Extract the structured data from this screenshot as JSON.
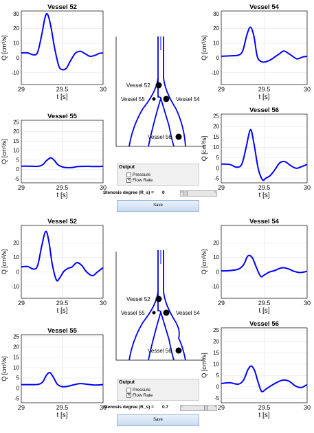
{
  "colors": {
    "curve": "#0000ff",
    "grid": "#e3e3e3",
    "axis": "#000000"
  },
  "sets": [
    {
      "stenosis_label": "Stenosis degree (R_s) =",
      "stenosis_value": "0",
      "output": {
        "title": "Output",
        "options": [
          {
            "label": "Pressure",
            "checked": false
          },
          {
            "label": "Flow Rate",
            "checked": true
          }
        ]
      },
      "save_label": "Save",
      "diagram_labels": [
        "Vessel 52",
        "Vessel 55",
        "Vessel 54",
        "Vessel 56"
      ]
    },
    {
      "stenosis_label": "Stenosis degree (R_s) =",
      "stenosis_value": "0.7",
      "output": {
        "title": "Output",
        "options": [
          {
            "label": "Pressure",
            "checked": false
          },
          {
            "label": "Flow Rate",
            "checked": true
          }
        ]
      },
      "save_label": "Save",
      "diagram_labels": [
        "Vessel 52",
        "Vessel 55",
        "Vessel 54",
        "Vessel 56"
      ]
    }
  ],
  "chart_data": [
    {
      "type": "line",
      "title": "Vessel 52",
      "ylabel": "Q [cm³/s]",
      "xlabel": "t [s]",
      "xlim": [
        29,
        30
      ],
      "ylim": [
        -18,
        32
      ],
      "x_ticks": [
        "29",
        "29.5",
        "30"
      ],
      "y_ticks": [
        "30",
        "20",
        "10",
        "0",
        "-10"
      ],
      "x": [
        29.0,
        29.08,
        29.15,
        29.2,
        29.25,
        29.29,
        29.32,
        29.36,
        29.41,
        29.46,
        29.5,
        29.55,
        29.6,
        29.66,
        29.72,
        29.78,
        29.84,
        29.9,
        29.95,
        30.0
      ],
      "y": [
        3.5,
        3.5,
        2.2,
        4.0,
        16.0,
        27.5,
        29.8,
        22.0,
        6.0,
        -5.5,
        -7.8,
        -7.0,
        -2.0,
        3.2,
        4.6,
        3.0,
        1.2,
        1.8,
        3.1,
        3.5
      ]
    },
    {
      "type": "line",
      "title": "Vessel 54",
      "ylabel": "Q [cm³/s]",
      "xlabel": "t [s]",
      "xlim": [
        29,
        30
      ],
      "ylim": [
        -18,
        32
      ],
      "x_ticks": [
        "29",
        "29.5",
        "30"
      ],
      "y_ticks": [
        "30",
        "20",
        "10",
        "0",
        "-10"
      ],
      "x": [
        29.0,
        29.1,
        29.2,
        29.25,
        29.3,
        29.34,
        29.38,
        29.42,
        29.47,
        29.52,
        29.58,
        29.63,
        29.68,
        29.73,
        29.8,
        29.88,
        29.95,
        30.0
      ],
      "y": [
        1.2,
        1.5,
        2.0,
        5.0,
        16.0,
        21.0,
        15.0,
        1.0,
        -2.5,
        -2.5,
        -1.0,
        1.0,
        3.0,
        4.8,
        2.5,
        -0.5,
        0.8,
        1.2
      ]
    },
    {
      "type": "line",
      "title": "Vessel 55",
      "ylabel": "Q [cm³/s]",
      "xlabel": "t [s]",
      "xlim": [
        29,
        30
      ],
      "ylim": [
        -7,
        26
      ],
      "x_ticks": [
        "29",
        "29.5",
        "30"
      ],
      "y_ticks": [
        "25",
        "20",
        "15",
        "10",
        "5",
        "0",
        "-5"
      ],
      "x": [
        29.0,
        29.1,
        29.2,
        29.26,
        29.31,
        29.36,
        29.4,
        29.45,
        29.52,
        29.6,
        29.7,
        29.8,
        29.9,
        30.0
      ],
      "y": [
        1.8,
        1.8,
        1.7,
        2.5,
        4.8,
        6.2,
        5.0,
        2.5,
        1.2,
        1.0,
        1.6,
        1.7,
        1.6,
        1.7
      ]
    },
    {
      "type": "line",
      "title": "Vessel 56",
      "ylabel": "Q [cm³/s]",
      "xlabel": "t [s]",
      "xlim": [
        29,
        30
      ],
      "ylim": [
        -7,
        26
      ],
      "x_ticks": [
        "29",
        "29.5",
        "30"
      ],
      "y_ticks": [
        "25",
        "20",
        "15",
        "10",
        "5",
        "0",
        "-5"
      ],
      "x": [
        29.0,
        29.1,
        29.18,
        29.24,
        29.29,
        29.34,
        29.38,
        29.43,
        29.48,
        29.52,
        29.57,
        29.62,
        29.68,
        29.74,
        29.8,
        29.87,
        29.93,
        30.0
      ],
      "y": [
        2.0,
        1.8,
        0.5,
        2.0,
        10.0,
        18.5,
        12.0,
        0.0,
        -5.5,
        -4.8,
        -3.5,
        -1.0,
        2.5,
        3.2,
        1.5,
        0.0,
        0.7,
        1.8
      ]
    },
    {
      "type": "line",
      "title": "Vessel 52",
      "ylabel": "Q [cm³/s]",
      "xlabel": "t [s]",
      "xlim": [
        29,
        30
      ],
      "ylim": [
        -18,
        32
      ],
      "x_ticks": [
        "29",
        "29.5",
        "30"
      ],
      "y_ticks": [
        "20",
        "10",
        "0",
        "-10"
      ],
      "x": [
        29.0,
        29.08,
        29.15,
        29.2,
        29.25,
        29.3,
        29.34,
        29.38,
        29.43,
        29.47,
        29.52,
        29.57,
        29.62,
        29.68,
        29.74,
        29.8,
        29.87,
        29.93,
        30.0
      ],
      "y": [
        3.5,
        3.8,
        2.0,
        4.5,
        18.0,
        28.0,
        20.0,
        5.0,
        -5.5,
        -4.0,
        0.5,
        2.5,
        3.5,
        6.5,
        4.5,
        0.0,
        -2.5,
        0.0,
        3.0
      ]
    },
    {
      "type": "line",
      "title": "Vessel 54",
      "ylabel": "Q [cm³/s]",
      "xlabel": "t [s]",
      "xlim": [
        29,
        30
      ],
      "ylim": [
        -18,
        32
      ],
      "x_ticks": [
        "29",
        "29.5",
        "30"
      ],
      "y_ticks": [
        "20",
        "10",
        "0",
        "-10"
      ],
      "x": [
        29.0,
        29.1,
        29.2,
        29.26,
        29.31,
        29.36,
        29.41,
        29.46,
        29.5,
        29.56,
        29.62,
        29.68,
        29.73,
        29.79,
        29.85,
        29.92,
        30.0
      ],
      "y": [
        0.8,
        1.0,
        2.0,
        5.0,
        11.0,
        10.0,
        3.0,
        -3.0,
        -2.0,
        0.0,
        1.0,
        2.5,
        3.0,
        2.0,
        0.5,
        -0.3,
        0.5
      ]
    },
    {
      "type": "line",
      "title": "Vessel 55",
      "ylabel": "Q [cm³/s]",
      "xlabel": "t [s]",
      "xlim": [
        29,
        30
      ],
      "ylim": [
        -7,
        26
      ],
      "x_ticks": [
        "29",
        "29.5",
        "30"
      ],
      "y_ticks": [
        "25",
        "20",
        "15",
        "10",
        "5",
        "0",
        "-5"
      ],
      "x": [
        29.0,
        29.1,
        29.2,
        29.26,
        29.31,
        29.35,
        29.39,
        29.44,
        29.5,
        29.57,
        29.65,
        29.72,
        29.8,
        29.9,
        30.0
      ],
      "y": [
        1.8,
        1.8,
        1.9,
        3.0,
        6.5,
        7.6,
        5.5,
        2.0,
        0.8,
        1.0,
        1.8,
        2.3,
        2.0,
        1.6,
        1.8
      ]
    },
    {
      "type": "line",
      "title": "Vessel 56",
      "ylabel": "Q [cm³/s]",
      "xlabel": "t [s]",
      "xlim": [
        29,
        30
      ],
      "ylim": [
        -7,
        26
      ],
      "x_ticks": [
        "29",
        "29.5",
        "30"
      ],
      "y_ticks": [
        "25",
        "20",
        "15",
        "10",
        "5",
        "0",
        "-5"
      ],
      "x": [
        29.0,
        29.1,
        29.2,
        29.26,
        29.31,
        29.35,
        29.39,
        29.43,
        29.47,
        29.52,
        29.58,
        29.65,
        29.72,
        29.79,
        29.86,
        29.93,
        30.0
      ],
      "y": [
        1.5,
        1.8,
        1.2,
        3.0,
        7.5,
        9.2,
        7.0,
        2.0,
        -2.0,
        -1.0,
        0.5,
        2.0,
        3.0,
        2.5,
        0.5,
        -0.3,
        1.0
      ]
    }
  ]
}
